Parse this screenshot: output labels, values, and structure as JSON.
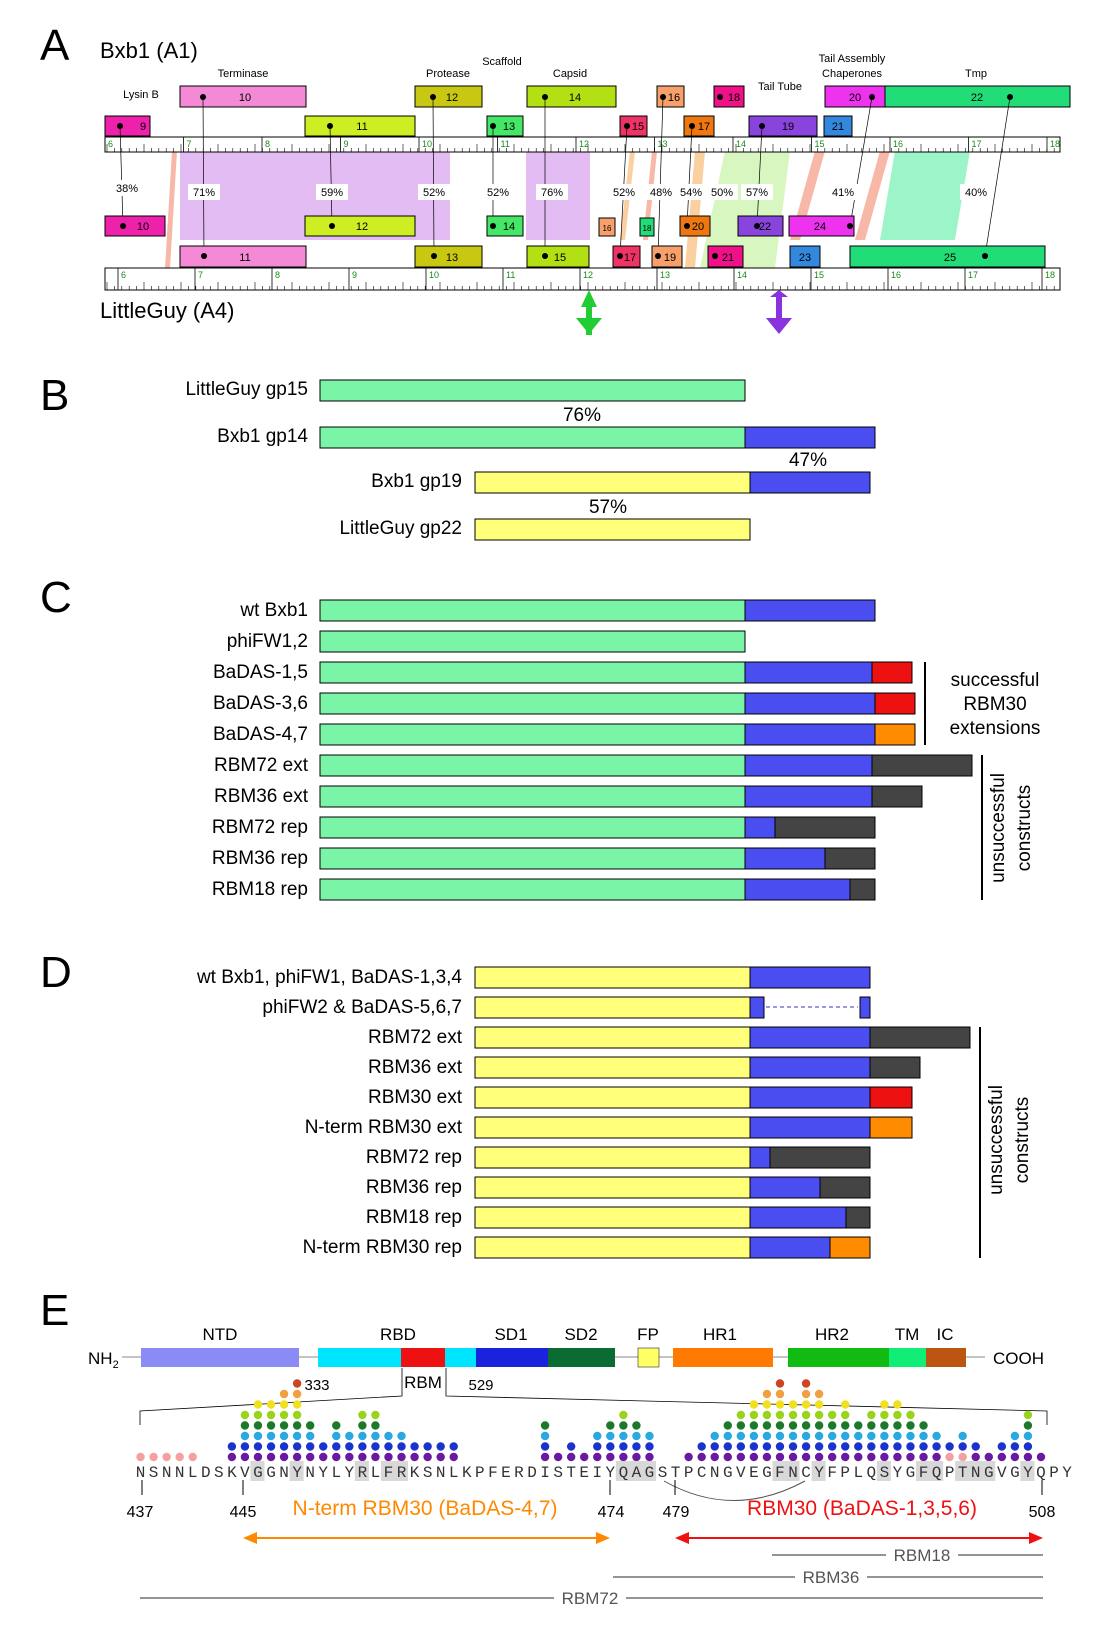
{
  "panel_letters": [
    "A",
    "B",
    "C",
    "D",
    "E"
  ],
  "panelA": {
    "top_genome": "Bxb1 (A1)",
    "bottom_genome": "LittleGuy (A4)",
    "annotations": [
      "Lysin B",
      "Terminase",
      "Protease",
      "Scaffold",
      "Capsid",
      "Tail Tube",
      "Tail Assembly",
      "Chaperones",
      "Tmp"
    ],
    "top_genes": [
      "9",
      "10",
      "11",
      "12",
      "13",
      "14",
      "15",
      "16",
      "17",
      "18",
      "19",
      "20",
      "21",
      "22"
    ],
    "bottom_genes": [
      "10",
      "11",
      "12",
      "13",
      "14",
      "15",
      "16",
      "17",
      "18",
      "19",
      "20",
      "21",
      "22",
      "23",
      "24",
      "25"
    ],
    "percents": [
      "38%",
      "71%",
      "59%",
      "52%",
      "52%",
      "76%",
      "52%",
      "48%",
      "54%",
      "50%",
      "57%",
      "41%",
      "40%"
    ],
    "top_ruler": [
      "6",
      "7",
      "8",
      "9",
      "10",
      "11",
      "12",
      "13",
      "14",
      "15",
      "16",
      "17",
      "18"
    ],
    "bottom_ruler": [
      "6",
      "7",
      "8",
      "9",
      "10",
      "11",
      "12",
      "13",
      "14",
      "15",
      "16",
      "17",
      "18"
    ]
  },
  "panelB": {
    "rows": [
      "LittleGuy gp15",
      "Bxb1 gp14",
      "Bxb1 gp19",
      "LittleGuy gp22"
    ],
    "percents": [
      "76%",
      "47%",
      "57%"
    ]
  },
  "panelC": {
    "rows": [
      "wt Bxb1",
      "phiFW1,2",
      "BaDAS-1,5",
      "BaDAS-3,6",
      "BaDAS-4,7",
      "RBM72 ext",
      "RBM36 ext",
      "RBM72 rep",
      "RBM36 rep",
      "RBM18 rep"
    ],
    "bracket1": [
      "successful",
      "RBM30",
      "extensions"
    ],
    "bracket2": [
      "unsuccessful",
      "constructs"
    ]
  },
  "panelD": {
    "rows": [
      "wt Bxb1, phiFW1, BaDAS-1,3,4",
      "phiFW2 & BaDAS-5,6,7",
      "RBM72 ext",
      "RBM36 ext",
      "RBM30 ext",
      "N-term RBM30 ext",
      "RBM72 rep",
      "RBM36 rep",
      "RBM18 rep",
      "N-term RBM30 rep"
    ],
    "bracket": [
      "unsuccessful",
      "constructs"
    ]
  },
  "panelE": {
    "nh2": "NH",
    "nh2_sub": "2",
    "cooh": "COOH",
    "domains": [
      "NTD",
      "RBD",
      "SD1",
      "SD2",
      "FP",
      "HR1",
      "HR2",
      "TM",
      "IC"
    ],
    "pos_333": "333",
    "pos_529": "529",
    "rbm": "RBM",
    "sequence": "NSNNLDSKVGGNYNYLYRLFRKSNLKPFERDISTEIYQAGSTPCNGVEGFNCYFPLQSYGFQPTNGVGYQPY",
    "positions": [
      "437",
      "445",
      "474",
      "479",
      "508"
    ],
    "nterm_label": "N-term RBM30 (BaDAS-4,7)",
    "rbm30_label": "RBM30 (BaDAS-1,3,5,6)",
    "rbm18": "RBM18",
    "rbm36": "RBM36",
    "rbm72": "RBM72"
  },
  "colors": {
    "green_bar": "#7af5a8",
    "blue_bar": "#4a4df0",
    "yellow_bar": "#ffff7a",
    "red": "#ee1111",
    "orange": "#ff8c00",
    "dark": "#444444"
  }
}
